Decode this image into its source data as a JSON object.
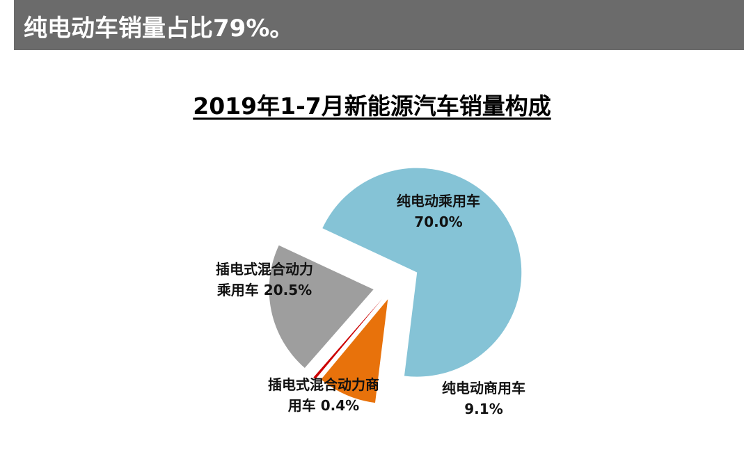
{
  "header": {
    "text": "纯电动车销量占比79%。"
  },
  "chart_data": {
    "type": "pie",
    "title": "2019年1-7月新能源汽车销量构成",
    "slices": [
      {
        "name": "纯电动乘用车",
        "value_label": "70.0%",
        "value": 70.0,
        "color": "#85c3d6"
      },
      {
        "name": "纯电动商用车",
        "value_label": "9.1%",
        "value": 9.1,
        "color": "#e8720b"
      },
      {
        "name": "插电式混合动力商用车",
        "value_label": "0.4%",
        "value": 0.4,
        "color": "#cc0000"
      },
      {
        "name": "插电式混合动力乘用车",
        "value_label": "20.5%",
        "value": 20.5,
        "color": "#9e9e9e"
      }
    ],
    "labels": {
      "bev_passenger": [
        "纯电动乘用车",
        "70.0%"
      ],
      "bev_commercial": [
        "纯电动商用车",
        "9.1%"
      ],
      "phev_commercial": [
        "插电式混合动力商",
        "用车 0.4%"
      ],
      "phev_passenger": [
        "插电式混合动力",
        "乘用车 20.5%"
      ]
    }
  }
}
